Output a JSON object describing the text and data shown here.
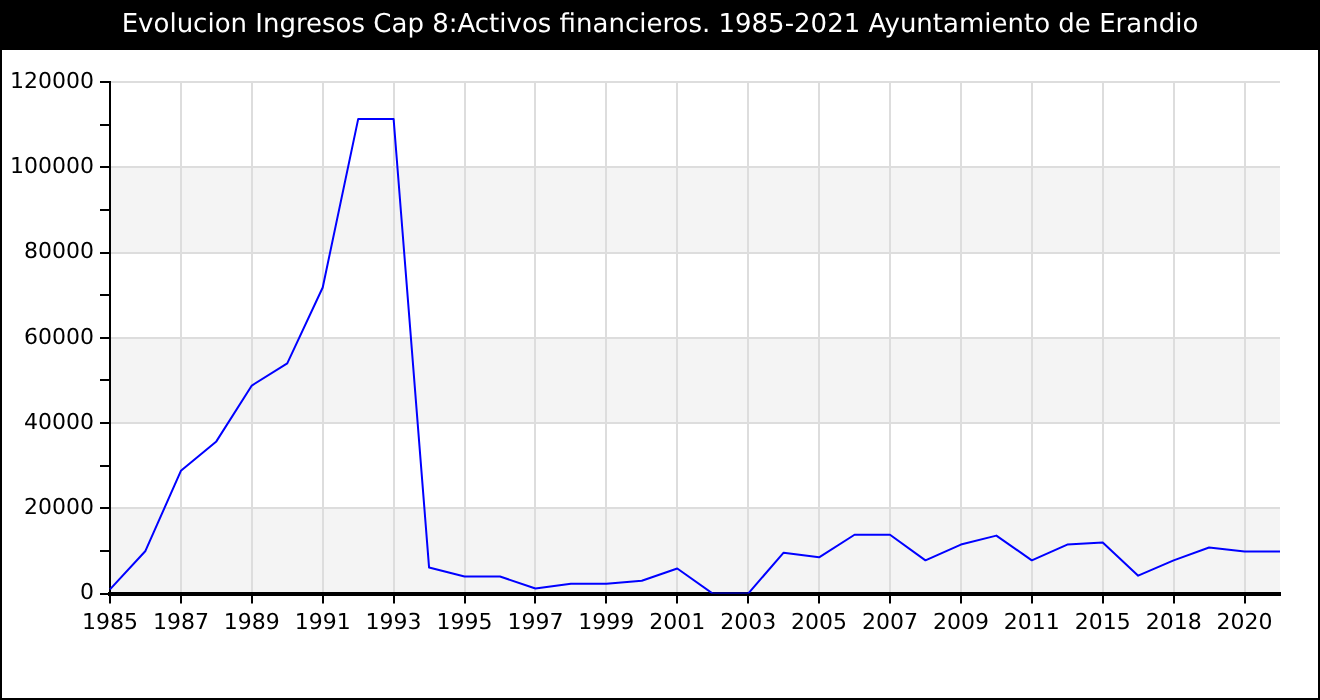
{
  "chart_data": {
    "type": "line",
    "title": "Evolucion Ingresos Cap 8:Activos financieros. 1985-2021 Ayuntamiento de Erandio",
    "categories": [
      "1985",
      null,
      "1987",
      null,
      "1989",
      null,
      "1991",
      null,
      "1993",
      null,
      "1995",
      null,
      "1997",
      null,
      "1999",
      null,
      "2001",
      null,
      "2003",
      null,
      "2005",
      null,
      "2007",
      null,
      "2009",
      null,
      "2011",
      null,
      "2015",
      null,
      "2018",
      null,
      "2020",
      null
    ],
    "series": [
      {
        "color": "#0000ff",
        "values": [
          1000,
          10000,
          28800,
          35700,
          48800,
          54000,
          71800,
          111300,
          111300,
          6100,
          4000,
          4000,
          1200,
          2300,
          2300,
          3000,
          5900,
          0,
          0,
          9600,
          8500,
          13800,
          13800,
          7800,
          11500,
          13600,
          7800,
          11500,
          12000,
          4200,
          7800,
          10800,
          9900,
          9900
        ]
      }
    ],
    "ylim": [
      0,
      120000
    ],
    "yticks": [
      0,
      {
        "value": 10000,
        "label": null
      },
      20000,
      {
        "value": 30000,
        "label": null
      },
      40000,
      {
        "value": 50000,
        "label": null
      },
      60000,
      {
        "value": 70000,
        "label": null
      },
      80000,
      {
        "value": 90000,
        "label": null
      },
      100000,
      {
        "value": 110000,
        "label": null
      },
      120000
    ],
    "grid": true,
    "legend": false
  }
}
